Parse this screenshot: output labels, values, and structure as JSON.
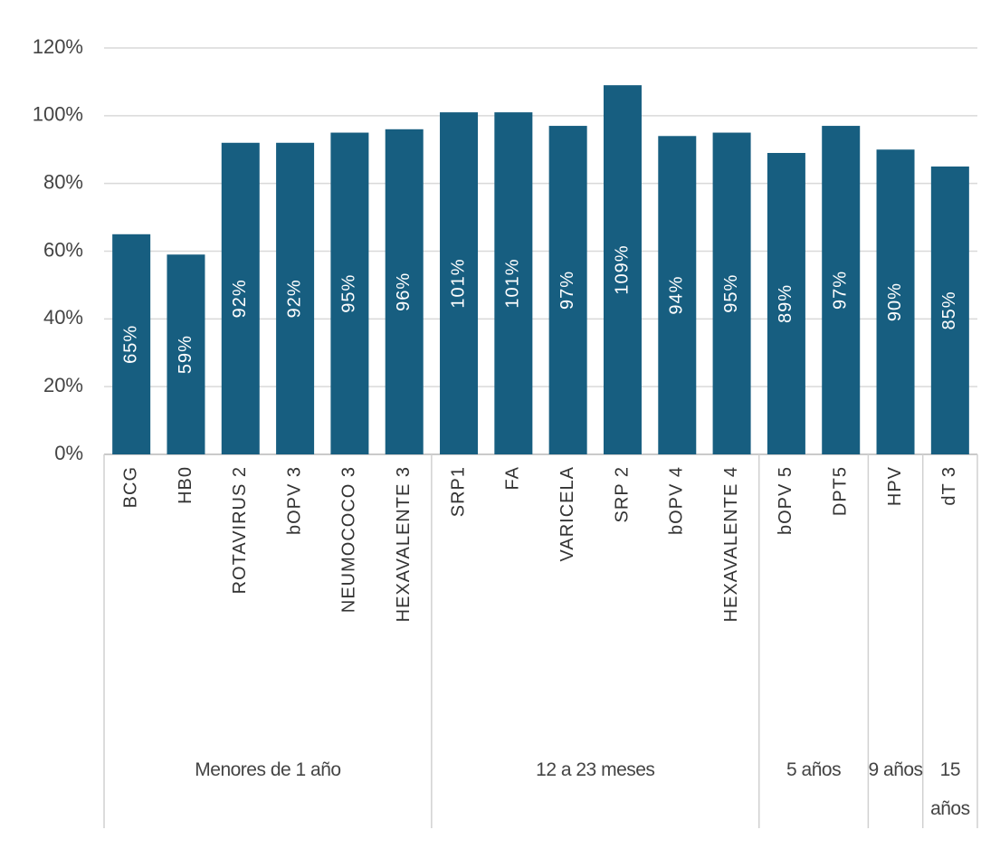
{
  "chart_data": {
    "type": "bar",
    "color": "#175e80",
    "grid": true,
    "ylim": [
      0,
      120
    ],
    "yticks": [
      {
        "value": 0,
        "label": "0%"
      },
      {
        "value": 20,
        "label": "20%"
      },
      {
        "value": 40,
        "label": "40%"
      },
      {
        "value": 60,
        "label": "60%"
      },
      {
        "value": 80,
        "label": "80%"
      },
      {
        "value": 100,
        "label": "100%"
      },
      {
        "value": 120,
        "label": "120%"
      }
    ],
    "groups": [
      {
        "name": "Menores de 1 año",
        "categories": [
          "BCG",
          "HB0",
          "ROTAVIRUS 2",
          "bOPV 3",
          "NEUMOCOCO 3",
          "HEXAVALENTE 3"
        ],
        "values": [
          65,
          59,
          92,
          92,
          95,
          96
        ],
        "value_labels": [
          "65%",
          "59%",
          "92%",
          "92%",
          "95%",
          "96%"
        ]
      },
      {
        "name": "12 a 23 meses",
        "categories": [
          "SRP1",
          "FA",
          "VARICELA",
          "SRP 2",
          "bOPV 4",
          "HEXAVALENTE 4"
        ],
        "values": [
          101,
          101,
          97,
          109,
          94,
          95
        ],
        "value_labels": [
          "101%",
          "101%",
          "97%",
          "109%",
          "94%",
          "95%"
        ]
      },
      {
        "name": "5 años",
        "categories": [
          "bOPV 5",
          "DPT5"
        ],
        "values": [
          89,
          97
        ],
        "value_labels": [
          "89%",
          "97%"
        ]
      },
      {
        "name": "9 años",
        "categories": [
          "HPV"
        ],
        "values": [
          90
        ],
        "value_labels": [
          "90%"
        ]
      },
      {
        "name": "15 años",
        "categories": [
          "dT 3"
        ],
        "values": [
          85
        ],
        "value_labels": [
          "85%"
        ]
      }
    ]
  }
}
